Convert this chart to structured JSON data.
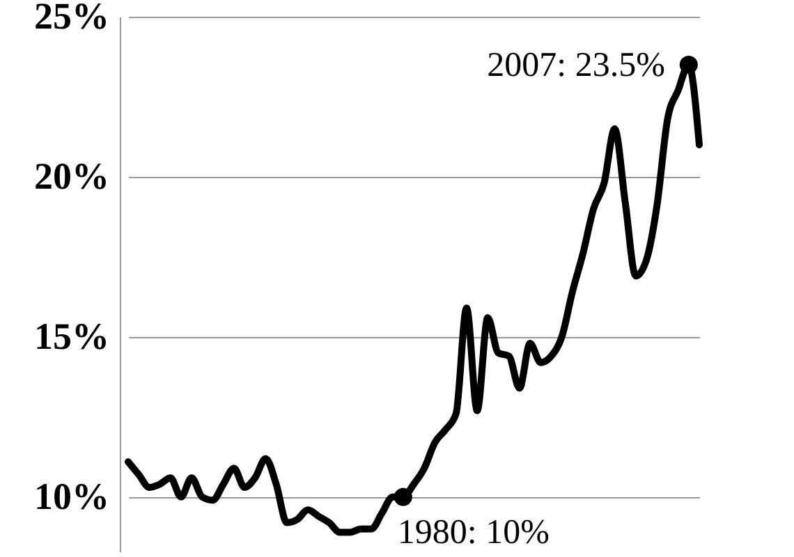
{
  "chart_data": {
    "type": "line",
    "categories": [
      null,
      null,
      null,
      null,
      null,
      null,
      null,
      null,
      null,
      null,
      null,
      null,
      null,
      null,
      null,
      null,
      null,
      null,
      null,
      null,
      null,
      null,
      null,
      null,
      null,
      null,
      null,
      null,
      null,
      null,
      null,
      null,
      null,
      null,
      null,
      null,
      null,
      null,
      null,
      null,
      null,
      null,
      null,
      null,
      null,
      null,
      null,
      null,
      null,
      null,
      null,
      null,
      null,
      null,
      null
    ],
    "series": [
      {
        "color": "#000000",
        "values": [
          11.1,
          10.7,
          10.3,
          10.4,
          10.6,
          10.0,
          10.6,
          10.0,
          9.9,
          10.4,
          10.9,
          10.3,
          10.6,
          11.2,
          10.4,
          9.2,
          9.3,
          9.6,
          9.4,
          9.2,
          8.9,
          8.9,
          9.0,
          9.0,
          9.5,
          10.0,
          10.0,
          10.4,
          10.9,
          11.7,
          12.1,
          12.6,
          15.9,
          12.7,
          15.6,
          14.5,
          14.4,
          13.4,
          14.8,
          14.2,
          14.4,
          15.0,
          16.4,
          17.6,
          19.0,
          19.8,
          21.5,
          19.2,
          16.9,
          17.4,
          19.1,
          21.8,
          22.7,
          23.5,
          21.0
        ],
        "value_labels": [
          null,
          null,
          null,
          null,
          null,
          null,
          null,
          null,
          null,
          null,
          null,
          null,
          null,
          null,
          null,
          null,
          null,
          null,
          null,
          null,
          null,
          null,
          null,
          null,
          null,
          null,
          "1980: 10%",
          null,
          null,
          null,
          null,
          null,
          null,
          null,
          null,
          null,
          null,
          null,
          null,
          null,
          null,
          null,
          null,
          null,
          null,
          null,
          null,
          null,
          null,
          null,
          null,
          null,
          null,
          "2007: 23.5%",
          null
        ]
      }
    ],
    "ylim": [
      8.3,
      25
    ],
    "yticks": [
      {
        "value": 10,
        "label": "10%"
      },
      {
        "value": 15,
        "label": "15%"
      },
      {
        "value": 20,
        "label": "20%"
      },
      {
        "value": 25,
        "label": "25%"
      }
    ],
    "grid": "y",
    "tick_labels": "y"
  }
}
